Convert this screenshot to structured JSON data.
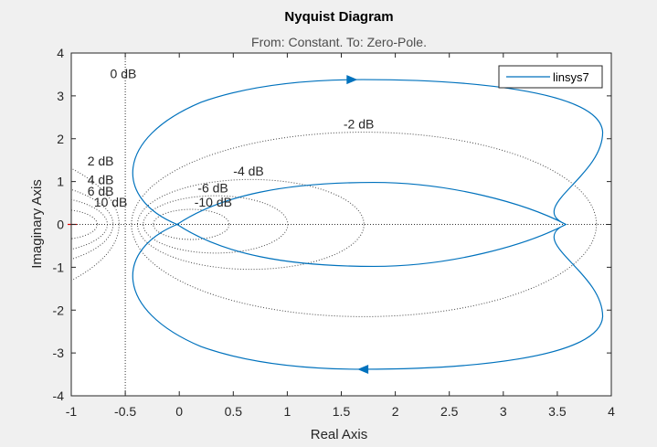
{
  "chart_data": {
    "type": "line",
    "title": "Nyquist Diagram",
    "subtitle": "From: Constant.  To: Zero-Pole.",
    "xlabel": "Real Axis",
    "ylabel": "Imaginary Axis",
    "xlim": [
      -1,
      4
    ],
    "ylim": [
      -4,
      4
    ],
    "xticks": [
      -1,
      -0.5,
      0,
      0.5,
      1,
      1.5,
      2,
      2.5,
      3,
      3.5,
      4
    ],
    "xtick_labels": [
      "-1",
      "-0.5",
      "0",
      "0.5",
      "1",
      "1.5",
      "2",
      "2.5",
      "3",
      "3.5",
      "4"
    ],
    "yticks": [
      -4,
      -3,
      -2,
      -1,
      0,
      1,
      2,
      3,
      4
    ],
    "ytick_labels": [
      "-4",
      "-3",
      "-2",
      "-1",
      "0",
      "1",
      "2",
      "3",
      "4"
    ],
    "grid": "M-circles (dB)",
    "legend": {
      "entries": [
        "linsys7"
      ],
      "placement": "top-right"
    },
    "series": [
      {
        "name": "linsys7",
        "color": "#0072BD",
        "description_points": [
          [
            -0.02,
            0.0
          ],
          [
            0.1,
            0.22
          ],
          [
            0.5,
            0.5
          ],
          [
            1.0,
            0.75
          ],
          [
            1.5,
            0.92
          ],
          [
            1.85,
            0.98
          ],
          [
            2.2,
            0.95
          ],
          [
            2.8,
            0.7
          ],
          [
            3.3,
            0.35
          ],
          [
            3.58,
            0.0
          ],
          [
            3.3,
            -0.35
          ],
          [
            2.8,
            -0.7
          ],
          [
            2.2,
            -0.95
          ],
          [
            1.85,
            -0.98
          ],
          [
            1.5,
            -0.92
          ],
          [
            1.0,
            -0.75
          ],
          [
            0.5,
            -0.5
          ],
          [
            0.1,
            -0.22
          ],
          [
            -0.02,
            0.0
          ]
        ],
        "arrows": [
          [
            1.6,
            3.38
          ],
          [
            1.7,
            -3.38
          ]
        ]
      }
    ],
    "db_circles": [
      {
        "label": "0 dB",
        "db": 0,
        "label_x": -0.64,
        "label_y": 3.52
      },
      {
        "label": "-2 dB",
        "db": -2,
        "label_x": 1.52,
        "label_y": 2.35
      },
      {
        "label": "-4 dB",
        "db": -4,
        "label_x": 0.5,
        "label_y": 1.25
      },
      {
        "label": "-6 dB",
        "db": -6,
        "label_x": 0.17,
        "label_y": 0.85
      },
      {
        "label": "-10 dB",
        "db": -10,
        "label_x": 0.14,
        "label_y": 0.52
      },
      {
        "label": "2 dB",
        "db": 2,
        "label_x": -0.85,
        "label_y": 1.48
      },
      {
        "label": "4 dB",
        "db": 4,
        "label_x": -0.85,
        "label_y": 1.05
      },
      {
        "label": "6 dB",
        "db": 6,
        "label_x": -0.85,
        "label_y": 0.78
      },
      {
        "label": "10 dB",
        "db": 10,
        "label_x": -0.79,
        "label_y": 0.52
      }
    ],
    "critical_point": [
      -1,
      0
    ]
  }
}
